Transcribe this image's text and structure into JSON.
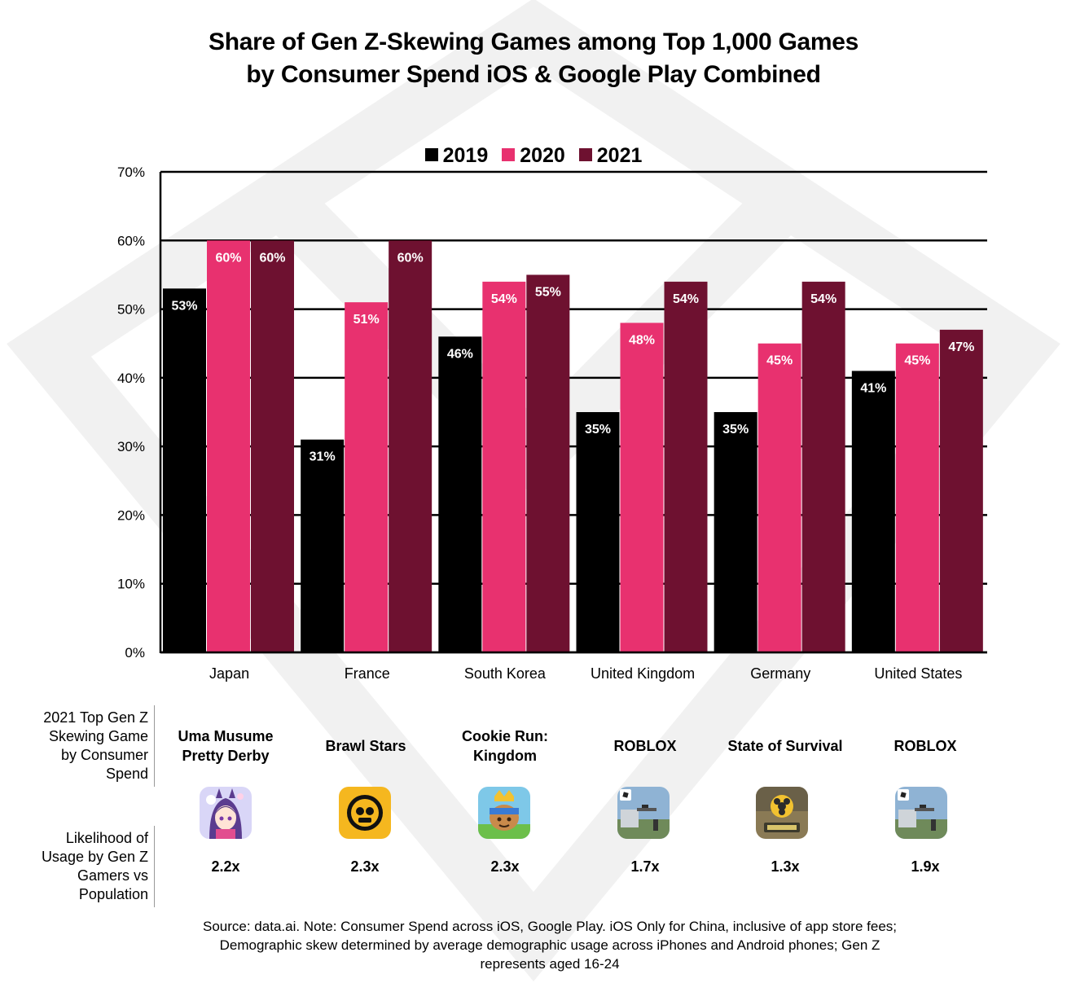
{
  "title_line1": "Share of Gen Z-Skewing Games among Top 1,000 Games",
  "title_line2": "by Consumer Spend iOS & Google Play Combined",
  "colors": {
    "y2019": "#000000",
    "y2020": "#e8316f",
    "y2021": "#6e1130"
  },
  "chart_data": {
    "type": "bar",
    "categories": [
      "Japan",
      "France",
      "South Korea",
      "United Kingdom",
      "Germany",
      "United States"
    ],
    "series": [
      {
        "name": "2019",
        "values": [
          53,
          31,
          46,
          35,
          35,
          41
        ],
        "labels": [
          "53%",
          "31%",
          "46%",
          "35%",
          "35%",
          "41%"
        ]
      },
      {
        "name": "2020",
        "values": [
          60,
          51,
          54,
          48,
          45,
          45
        ],
        "labels": [
          "60%",
          "51%",
          "54%",
          "48%",
          "45%",
          "45%"
        ]
      },
      {
        "name": "2021",
        "values": [
          60,
          60,
          55,
          54,
          54,
          47
        ],
        "labels": [
          "60%",
          "60%",
          "55%",
          "54%",
          "54%",
          "47%"
        ]
      }
    ],
    "ylim": [
      0,
      70
    ],
    "yticks": [
      0,
      10,
      20,
      30,
      40,
      50,
      60,
      70
    ],
    "ytick_labels": [
      "0%",
      "10%",
      "20%",
      "30%",
      "40%",
      "50%",
      "60%",
      "70%"
    ],
    "grid": true,
    "legend_position": "top-center"
  },
  "row1_label": [
    "2021 Top Gen Z",
    "Skewing Game",
    "by Consumer",
    "Spend"
  ],
  "row2_label": [
    "Likelihood of",
    "Usage by Gen Z",
    "Gamers vs",
    "Population"
  ],
  "games": [
    {
      "name_lines": [
        "Uma Musume",
        "Pretty Derby"
      ],
      "icon": "uma-musume-icon",
      "multiplier": "2.2x"
    },
    {
      "name_lines": [
        "Brawl Stars"
      ],
      "icon": "brawl-stars-icon",
      "multiplier": "2.3x"
    },
    {
      "name_lines": [
        "Cookie Run:",
        "Kingdom"
      ],
      "icon": "cookie-run-icon",
      "multiplier": "2.3x"
    },
    {
      "name_lines": [
        "ROBLOX"
      ],
      "icon": "roblox-icon",
      "multiplier": "1.7x"
    },
    {
      "name_lines": [
        "State of Survival"
      ],
      "icon": "state-of-survival-icon",
      "multiplier": "1.3x"
    },
    {
      "name_lines": [
        "ROBLOX"
      ],
      "icon": "roblox-icon",
      "multiplier": "1.9x"
    }
  ],
  "footnote": [
    "Source: data.ai. Note: Consumer Spend across iOS, Google Play. iOS Only for China, inclusive of app store fees;",
    "Demographic skew determined by average demographic usage across iPhones and Android phones; Gen Z",
    "represents aged 16-24"
  ]
}
